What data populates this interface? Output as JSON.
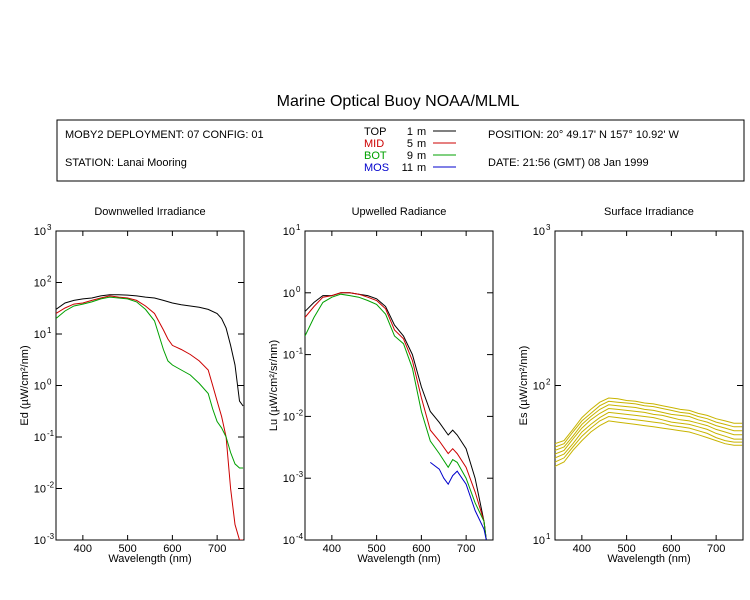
{
  "header": {
    "title": "Marine Optical Buoy NOAA/MLML",
    "deployment": "MOBY2 DEPLOYMENT: 07 CONFIG: 01",
    "station": "STATION: Lanai Mooring",
    "position": "POSITION: 20° 49.17' N   157° 10.92' W",
    "date": "DATE: 21:56 (GMT) 08 Jan 1999",
    "legend": [
      {
        "name": "TOP",
        "depth": "1",
        "unit": "m",
        "color": "#000000"
      },
      {
        "name": "MID",
        "depth": "5",
        "unit": "m",
        "color": "#cc0000"
      },
      {
        "name": "BOT",
        "depth": "9",
        "unit": "m",
        "color": "#00a000"
      },
      {
        "name": "MOS",
        "depth": "11",
        "unit": "m",
        "color": "#0000cc"
      }
    ]
  },
  "chart_data": [
    {
      "type": "line",
      "title": "Downwelled Irradiance",
      "xlabel": "Wavelength (nm)",
      "ylabel": "Ed  (µW/cm²/nm)",
      "xlim": [
        340,
        760
      ],
      "ylim": [
        0.001,
        1000
      ],
      "yscale": "log",
      "xticks": [
        "400",
        "500",
        "600",
        "700"
      ],
      "yticks": [
        [
          "10",
          "-3"
        ],
        [
          "10",
          "-2"
        ],
        [
          "10",
          "-1"
        ],
        [
          "10",
          "0"
        ],
        [
          "10",
          "1"
        ],
        [
          "10",
          "2"
        ],
        [
          "10",
          "3"
        ]
      ],
      "series": [
        {
          "name": "TOP",
          "color": "#000000",
          "x": [
            340,
            360,
            380,
            400,
            420,
            440,
            460,
            480,
            500,
            520,
            540,
            560,
            580,
            600,
            620,
            640,
            660,
            680,
            700,
            710,
            720,
            730,
            740,
            750,
            758
          ],
          "y": [
            30,
            40,
            45,
            48,
            50,
            55,
            58,
            58,
            57,
            55,
            52,
            50,
            45,
            40,
            37,
            35,
            33,
            30,
            25,
            20,
            13,
            6,
            2.5,
            0.5,
            0.4
          ]
        },
        {
          "name": "MID",
          "color": "#cc0000",
          "x": [
            340,
            360,
            380,
            400,
            420,
            440,
            460,
            480,
            500,
            520,
            540,
            560,
            580,
            590,
            600,
            610,
            620,
            640,
            660,
            680,
            690,
            700,
            710,
            720,
            730,
            740,
            750,
            758
          ],
          "y": [
            25,
            32,
            38,
            40,
            45,
            50,
            55,
            52,
            50,
            45,
            35,
            25,
            12,
            8,
            6,
            5.5,
            5,
            4,
            3,
            2,
            1,
            0.5,
            0.25,
            0.1,
            0.01,
            0.002,
            0.001,
            0.001
          ]
        },
        {
          "name": "BOT",
          "color": "#00a000",
          "x": [
            340,
            360,
            380,
            400,
            420,
            440,
            460,
            480,
            500,
            520,
            540,
            560,
            580,
            590,
            600,
            620,
            640,
            660,
            680,
            690,
            700,
            710,
            720,
            730,
            740,
            750,
            758
          ],
          "y": [
            20,
            28,
            35,
            38,
            42,
            48,
            52,
            50,
            48,
            42,
            30,
            18,
            5,
            3,
            2.5,
            2,
            1.6,
            1.1,
            0.7,
            0.35,
            0.2,
            0.15,
            0.1,
            0.05,
            0.03,
            0.025,
            0.025
          ]
        }
      ]
    },
    {
      "type": "line",
      "title": "Upwelled Radiance",
      "xlabel": "Wavelength (nm)",
      "ylabel": "Lu  (µW/cm²/sr/nm)",
      "xlim": [
        340,
        760
      ],
      "ylim": [
        0.0001,
        10
      ],
      "yscale": "log",
      "xticks": [
        "400",
        "500",
        "600",
        "700"
      ],
      "yticks": [
        [
          "10",
          "-4"
        ],
        [
          "10",
          "-3"
        ],
        [
          "10",
          "-2"
        ],
        [
          "10",
          "-1"
        ],
        [
          "10",
          "0"
        ],
        [
          "10",
          "1"
        ]
      ],
      "series": [
        {
          "name": "TOP",
          "color": "#000000",
          "x": [
            340,
            360,
            380,
            400,
            420,
            440,
            460,
            480,
            500,
            520,
            540,
            560,
            580,
            600,
            620,
            640,
            660,
            670,
            680,
            700,
            720,
            740,
            745
          ],
          "y": [
            0.5,
            0.7,
            0.9,
            0.9,
            1.0,
            1.0,
            0.95,
            0.9,
            0.8,
            0.6,
            0.3,
            0.2,
            0.1,
            0.03,
            0.012,
            0.008,
            0.005,
            0.006,
            0.005,
            0.003,
            0.001,
            0.0002,
            0.0001
          ]
        },
        {
          "name": "MID",
          "color": "#cc0000",
          "x": [
            340,
            360,
            380,
            400,
            420,
            440,
            460,
            480,
            500,
            520,
            540,
            560,
            580,
            600,
            620,
            640,
            660,
            670,
            680,
            700,
            720,
            740,
            745
          ],
          "y": [
            0.4,
            0.6,
            0.85,
            0.9,
            1.0,
            1.0,
            0.95,
            0.85,
            0.75,
            0.55,
            0.25,
            0.18,
            0.08,
            0.02,
            0.006,
            0.004,
            0.0025,
            0.003,
            0.0025,
            0.0015,
            0.0006,
            0.0002,
            0.0001
          ]
        },
        {
          "name": "BOT",
          "color": "#00a000",
          "x": [
            340,
            360,
            380,
            400,
            420,
            440,
            460,
            480,
            500,
            520,
            540,
            560,
            580,
            600,
            620,
            640,
            660,
            670,
            680,
            700,
            720,
            740,
            745
          ],
          "y": [
            0.2,
            0.4,
            0.7,
            0.85,
            0.95,
            0.9,
            0.85,
            0.75,
            0.65,
            0.45,
            0.2,
            0.15,
            0.06,
            0.012,
            0.004,
            0.0025,
            0.0015,
            0.002,
            0.0018,
            0.001,
            0.0004,
            0.0002,
            0.0001
          ]
        },
        {
          "name": "MOS",
          "color": "#0000cc",
          "x": [
            620,
            640,
            650,
            660,
            670,
            680,
            700,
            720,
            740,
            745
          ],
          "y": [
            0.0018,
            0.0014,
            0.001,
            0.0008,
            0.0011,
            0.0013,
            0.0008,
            0.0003,
            0.00015,
            0.0001
          ]
        }
      ]
    },
    {
      "type": "line",
      "title": "Surface Irradiance",
      "xlabel": "Wavelength (nm)",
      "ylabel": "Es  (µW/cm²/nm)",
      "xlim": [
        340,
        760
      ],
      "ylim": [
        10,
        1000
      ],
      "yscale": "log",
      "xticks": [
        "400",
        "500",
        "600",
        "700"
      ],
      "yticks": [
        [
          "10",
          "1"
        ],
        [
          "10",
          "2"
        ],
        [
          "10",
          "3"
        ]
      ],
      "series_color": "#c8b400",
      "x": [
        340,
        360,
        380,
        400,
        420,
        440,
        460,
        480,
        500,
        520,
        540,
        560,
        580,
        600,
        620,
        640,
        660,
        680,
        700,
        720,
        740,
        758
      ],
      "series": [
        {
          "values": [
            42,
            44,
            52,
            62,
            70,
            78,
            83,
            82,
            80,
            79,
            77,
            76,
            74,
            72,
            70,
            69,
            66,
            64,
            61,
            59,
            57,
            57
          ]
        },
        {
          "values": [
            40,
            42,
            50,
            59,
            66,
            74,
            79,
            78,
            77,
            76,
            74,
            73,
            71,
            69,
            67,
            66,
            63,
            61,
            58,
            56,
            54,
            54
          ]
        },
        {
          "values": [
            38,
            40,
            47,
            56,
            63,
            70,
            75,
            74,
            73,
            72,
            70,
            69,
            67,
            65,
            64,
            63,
            60,
            58,
            55,
            53,
            51,
            51
          ]
        },
        {
          "values": [
            36,
            38,
            45,
            53,
            60,
            66,
            71,
            70,
            69,
            68,
            67,
            65,
            64,
            62,
            60,
            59,
            57,
            55,
            52,
            50,
            48,
            48
          ]
        },
        {
          "values": [
            34,
            36,
            42,
            50,
            56,
            62,
            67,
            66,
            65,
            64,
            63,
            62,
            60,
            58,
            57,
            56,
            54,
            52,
            49,
            47,
            45,
            45
          ]
        },
        {
          "values": [
            32,
            34,
            40,
            47,
            53,
            59,
            63,
            62,
            61,
            60,
            59,
            58,
            57,
            55,
            54,
            53,
            51,
            49,
            46,
            44,
            43,
            43
          ]
        },
        {
          "values": [
            30,
            32,
            38,
            44,
            50,
            55,
            59,
            58,
            57,
            56,
            55,
            54,
            53,
            52,
            51,
            50,
            48,
            46,
            44,
            42,
            41,
            41
          ]
        }
      ]
    }
  ]
}
